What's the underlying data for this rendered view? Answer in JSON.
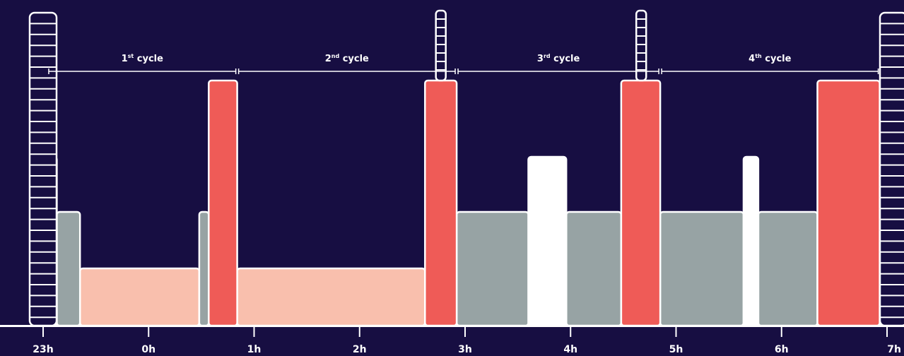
{
  "chart_data": {
    "type": "bar",
    "xlabel": "",
    "ylabel": "",
    "grid": false,
    "x_ticks": [
      "23h",
      "0h",
      "1h",
      "2h",
      "3h",
      "4h",
      "5h",
      "6h",
      "7h"
    ],
    "xlim": [
      -0.01,
      8.06
    ],
    "stage_levels": {
      "awake": 3,
      "light": 2,
      "deep": 1,
      "rem": 4
    },
    "colors": {
      "background": "#170e42",
      "awake": "#ffffff",
      "light": "#97a3a4",
      "deep": "#f9bfad",
      "rem": "#ef5b57",
      "outline": "#ffffff"
    },
    "segments": [
      {
        "stage": "awake",
        "start": -0.01,
        "end": 0.13
      },
      {
        "stage": "light",
        "start": 0.13,
        "end": 0.35
      },
      {
        "stage": "deep",
        "start": 0.35,
        "end": 1.48
      },
      {
        "stage": "light",
        "start": 1.48,
        "end": 1.57
      },
      {
        "stage": "rem",
        "start": 1.57,
        "end": 1.84
      },
      {
        "stage": "deep",
        "start": 1.84,
        "end": 3.62
      },
      {
        "stage": "rem",
        "start": 3.62,
        "end": 3.92
      },
      {
        "stage": "light",
        "start": 3.92,
        "end": 4.6
      },
      {
        "stage": "awake",
        "start": 4.6,
        "end": 4.96
      },
      {
        "stage": "light",
        "start": 4.96,
        "end": 5.48
      },
      {
        "stage": "rem",
        "start": 5.48,
        "end": 5.85
      },
      {
        "stage": "light",
        "start": 5.85,
        "end": 6.64
      },
      {
        "stage": "awake",
        "start": 6.64,
        "end": 6.78
      },
      {
        "stage": "light",
        "start": 6.78,
        "end": 7.34
      },
      {
        "stage": "rem",
        "start": 7.34,
        "end": 7.93
      },
      {
        "stage": "light",
        "start": 7.93,
        "end": 8.06
      }
    ],
    "cycles": [
      {
        "num": "1",
        "sup": "st",
        "word": "cycle",
        "start": 0.04,
        "end": 1.84
      },
      {
        "num": "2",
        "sup": "nd",
        "word": "cycle",
        "start": 1.84,
        "end": 3.92
      },
      {
        "num": "3",
        "sup": "rd",
        "word": "cycle",
        "start": 3.92,
        "end": 5.85
      },
      {
        "num": "4",
        "sup": "th",
        "word": "cycle",
        "start": 5.85,
        "end": 7.93
      }
    ],
    "ladders": [
      {
        "at": 0.0,
        "kind": "wide"
      },
      {
        "at": 3.77,
        "kind": "narrow"
      },
      {
        "at": 5.67,
        "kind": "narrow"
      },
      {
        "at": 8.06,
        "kind": "wide"
      }
    ]
  }
}
